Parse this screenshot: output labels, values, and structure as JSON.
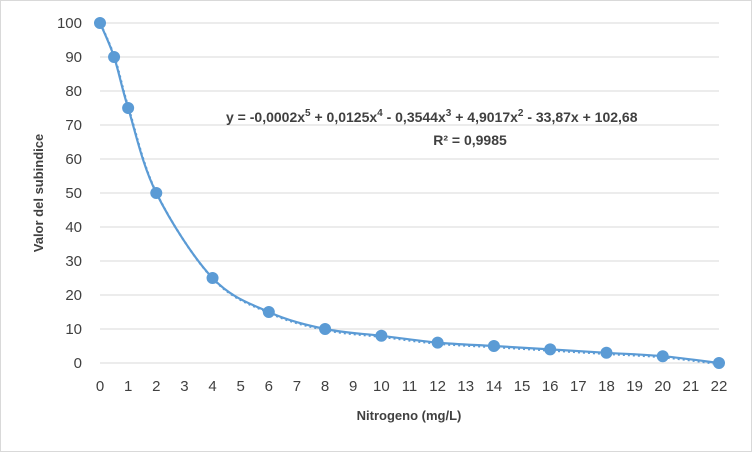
{
  "chart_data": {
    "type": "scatter",
    "xlabel": "Nitrogeno (mg/L)",
    "ylabel": "Valor del subindice",
    "x_ticks": [
      0,
      1,
      2,
      3,
      4,
      5,
      6,
      7,
      8,
      9,
      10,
      11,
      12,
      13,
      14,
      15,
      16,
      17,
      18,
      19,
      20,
      21,
      22
    ],
    "x_tick_labels": [
      "0",
      "1",
      "2",
      "3",
      "4",
      "5",
      "6",
      "7",
      "8",
      "9",
      "10",
      "11",
      "12",
      "13",
      "14",
      "15",
      "16",
      "17",
      "18",
      "19",
      "20",
      "21",
      "22"
    ],
    "y_ticks": [
      0,
      10,
      20,
      30,
      40,
      50,
      60,
      70,
      80,
      90,
      100
    ],
    "y_tick_labels": [
      "0",
      "10",
      "20",
      "30",
      "40",
      "50",
      "60",
      "70",
      "80",
      "90",
      "100"
    ],
    "xlim": [
      0,
      22
    ],
    "ylim": [
      0,
      100
    ],
    "grid": true,
    "series": [
      {
        "x": [
          0,
          0.5,
          1,
          2,
          4,
          6,
          8,
          10,
          12,
          14,
          16,
          18,
          20,
          22
        ],
        "y": [
          100,
          90,
          75,
          50,
          25,
          15,
          10,
          8,
          6,
          5,
          4,
          3,
          2,
          0
        ],
        "style": "smooth line with markers",
        "color": "#5b9bd5"
      }
    ],
    "trendline": {
      "type": "polynomial",
      "order": 5,
      "style": "dotted",
      "color": "#5b9bd5",
      "equation": "y = -0,0002x5 + 0,0125x4 - 0,3544x3 + 4,9017x2 - 33,87x + 102,68",
      "r_squared": "R² = 0,9985"
    }
  },
  "annotation": {
    "eq_prefix": "y = -0,0002x",
    "eq_exp5": "5",
    "eq_part4": " + 0,0125x",
    "eq_exp4": "4",
    "eq_part3": " - 0,3544x",
    "eq_exp3": "3",
    "eq_part2": " + 4,9017x",
    "eq_exp2": "2",
    "eq_suffix": " - 33,87x + 102,68",
    "r2_text": "R² = 0,9985"
  }
}
